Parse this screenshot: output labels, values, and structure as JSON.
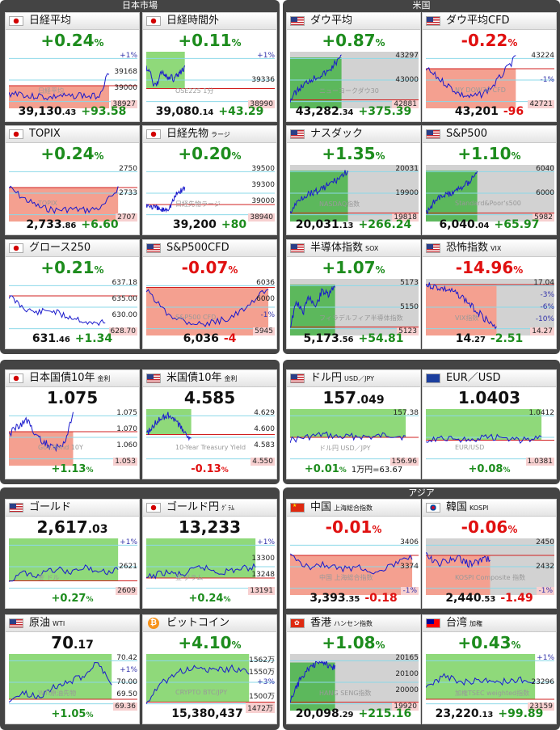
{
  "panels": [
    {
      "title": "日本市場"
    },
    {
      "title": "米国"
    },
    {
      "title": ""
    },
    {
      "title": ""
    },
    {
      "title": ""
    },
    {
      "title": "アジア"
    }
  ],
  "colors": {
    "up": "#1d8c1d",
    "down": "#e01010",
    "fill_up": "#8fd97a",
    "fill_down": "#f4a090",
    "line": "#1a1acc"
  },
  "cards": [
    {
      "id": "nikkei",
      "flag": "jp",
      "name": "日経平均",
      "sub": "",
      "main": "+0.24",
      "unit": "%",
      "dir": "up",
      "foot_int": "39,130",
      "foot_dec": ".43",
      "foot_chg": "+93.58",
      "foot_dir": "up",
      "labels": [
        "+1%",
        "39168",
        "39000",
        "38927"
      ],
      "watermark": "日経平均"
    },
    {
      "id": "nikkei-after",
      "flag": "jp",
      "name": "日経時間外",
      "sub": "",
      "main": "+0.11",
      "unit": "%",
      "dir": "up",
      "foot_int": "39,080",
      "foot_dec": ".14",
      "foot_chg": "+43.29",
      "foot_dir": "up",
      "labels": [
        "+1%",
        "39336",
        "38990"
      ],
      "watermark": "OSE225 1分"
    },
    {
      "id": "dow",
      "flag": "us",
      "name": "ダウ平均",
      "sub": "",
      "main": "+0.87",
      "unit": "%",
      "dir": "up",
      "foot_int": "43,282",
      "foot_dec": ".34",
      "foot_chg": "+375.39",
      "foot_dir": "up",
      "labels": [
        "43297",
        "43000",
        "42881"
      ],
      "watermark": "ニューヨークダウ30"
    },
    {
      "id": "dow-cfd",
      "flag": "us",
      "name": "ダウ平均CFD",
      "sub": "",
      "main": "-0.22",
      "unit": "%",
      "dir": "down",
      "foot_int": "43,201",
      "foot_dec": "",
      "foot_chg": "-96",
      "foot_dir": "down",
      "labels": [
        "43224",
        "-1%",
        "42721"
      ],
      "watermark": "NY DOW30 CFD"
    },
    {
      "id": "topix",
      "flag": "jp",
      "name": "TOPIX",
      "sub": "",
      "main": "+0.24",
      "unit": "%",
      "dir": "up",
      "foot_int": "2,733",
      "foot_dec": ".86",
      "foot_chg": "+6.60",
      "foot_dir": "up",
      "labels": [
        "2750",
        "2733",
        "2707"
      ],
      "watermark": "TOPIX"
    },
    {
      "id": "nikkei-fut",
      "flag": "jp",
      "name": "日経先物",
      "sub": "ラージ",
      "main": "+0.20",
      "unit": "%",
      "dir": "up",
      "foot_int": "39,200",
      "foot_dec": "",
      "foot_chg": "+80",
      "foot_dir": "up",
      "labels": [
        "39500",
        "39300",
        "39000",
        "38940"
      ],
      "watermark": "日経先物ラージ"
    },
    {
      "id": "nasdaq",
      "flag": "us",
      "name": "ナスダック",
      "sub": "",
      "main": "+1.35",
      "unit": "%",
      "dir": "up",
      "foot_int": "20,031",
      "foot_dec": ".13",
      "foot_chg": "+266.24",
      "foot_dir": "up",
      "labels": [
        "20031",
        "19900",
        "19818"
      ],
      "watermark": "NASDAQ指数"
    },
    {
      "id": "sp500",
      "flag": "us",
      "name": "S&P500",
      "sub": "",
      "main": "+1.10",
      "unit": "%",
      "dir": "up",
      "foot_int": "6,040",
      "foot_dec": ".04",
      "foot_chg": "+65.97",
      "foot_dir": "up",
      "labels": [
        "6040",
        "6000",
        "5982"
      ],
      "watermark": "Standard&Poor's500"
    },
    {
      "id": "growth",
      "flag": "jp",
      "name": "グロース250",
      "sub": "",
      "main": "+0.21",
      "unit": "%",
      "dir": "up",
      "foot_int": "631",
      "foot_dec": ".46",
      "foot_chg": "+1.34",
      "foot_dir": "up",
      "labels": [
        "637.18",
        "635.00",
        "630.00",
        "628.70"
      ],
      "watermark": ""
    },
    {
      "id": "sp500-cfd",
      "flag": "us",
      "name": "S&P500CFD",
      "sub": "",
      "main": "-0.07",
      "unit": "%",
      "dir": "down",
      "foot_int": "6,036",
      "foot_dec": "",
      "foot_chg": "-4",
      "foot_dir": "down",
      "labels": [
        "6036",
        "6000",
        "-1%",
        "5945"
      ],
      "watermark": "S&P500 CFD"
    },
    {
      "id": "sox",
      "flag": "us",
      "name": "半導体指数",
      "sub": "SOX",
      "main": "+1.07",
      "unit": "%",
      "dir": "up",
      "foot_int": "5,173",
      "foot_dec": ".56",
      "foot_chg": "+54.81",
      "foot_dir": "up",
      "labels": [
        "5173",
        "5150",
        "5123"
      ],
      "watermark": "フィラデルフィア半導体指数"
    },
    {
      "id": "vix",
      "flag": "us",
      "name": "恐怖指数",
      "sub": "VIX",
      "main": "-14.96",
      "unit": "%",
      "dir": "down",
      "foot_int": "14",
      "foot_dec": ".27",
      "foot_chg": "-2.51",
      "foot_dir": "up",
      "labels": [
        "17.04",
        "-3%",
        "-6%",
        "-10%",
        "14.27"
      ],
      "watermark": "VIX指数"
    },
    {
      "id": "jgb10",
      "flag": "jp",
      "name": "日本国債10年",
      "sub": "金利",
      "main": "1.075",
      "unit": "",
      "dir": "black",
      "foot_pct": "+1.13",
      "foot_pct_dir": "up",
      "extra": "",
      "labels": [
        "1.075",
        "1.070",
        "1.060",
        "1.053"
      ],
      "watermark": "Gov.Bond 10Y"
    },
    {
      "id": "ust10",
      "flag": "us",
      "name": "米国債10年",
      "sub": "金利",
      "main": "4.585",
      "unit": "",
      "dir": "black",
      "foot_pct": "-0.13",
      "foot_pct_dir": "down",
      "extra": "",
      "labels": [
        "4.629",
        "4.600",
        "4.583",
        "4.550"
      ],
      "watermark": "10-Year Treasury Yield"
    },
    {
      "id": "usdjpy",
      "flag": "us",
      "name": "ドル円",
      "sub": "USD／JPY",
      "main": "157",
      "main_dec": ".049",
      "unit": "",
      "dir": "black",
      "foot_pct": "+0.01",
      "foot_pct_dir": "up",
      "extra": "1万円=63.67",
      "labels": [
        "157.38",
        "156.96"
      ],
      "watermark": "ドル円 USD／JPY"
    },
    {
      "id": "eurusd",
      "flag": "eu",
      "name": "EUR／USD",
      "sub": "",
      "main": "1.0403",
      "unit": "",
      "dir": "black",
      "foot_pct": "+0.08",
      "foot_pct_dir": "up",
      "extra": "",
      "labels": [
        "1.0412",
        "1.0381"
      ],
      "watermark": "EUR/USD"
    },
    {
      "id": "gold",
      "flag": "us",
      "name": "ゴールド",
      "sub": "",
      "main": "2,617",
      "main_dec": ".03",
      "unit": "",
      "dir": "black",
      "foot_pct": "+0.27",
      "foot_pct_dir": "up",
      "extra": "",
      "labels": [
        "+1%",
        "2621",
        "2609"
      ],
      "watermark": "金 ドル"
    },
    {
      "id": "gold-jpy",
      "flag": "jp",
      "name": "ゴールド円",
      "sub": "ｸﾞﾗﾑ",
      "main": "13,233",
      "unit": "",
      "dir": "black",
      "foot_pct": "+0.24",
      "foot_pct_dir": "up",
      "extra": "",
      "labels": [
        "+1%",
        "13300",
        "13248",
        "13191"
      ],
      "watermark": "金 グラム"
    },
    {
      "id": "china",
      "flag": "cn",
      "name": "中国",
      "sub": "上海総合指数",
      "main": "-0.01",
      "unit": "%",
      "dir": "down",
      "foot_int": "3,393",
      "foot_dec": ".35",
      "foot_chg": "-0.18",
      "foot_dir": "down",
      "labels": [
        "3406",
        "3374",
        "-1%"
      ],
      "watermark": "中国 上海総合指数"
    },
    {
      "id": "korea",
      "flag": "kr",
      "name": "韓国",
      "sub": "KOSPI",
      "main": "-0.06",
      "unit": "%",
      "dir": "down",
      "foot_int": "2,440",
      "foot_dec": ".53",
      "foot_chg": "-1.49",
      "foot_dir": "down",
      "labels": [
        "2450",
        "2432",
        "-1%"
      ],
      "watermark": "KOSPI Composite 指数"
    },
    {
      "id": "oil",
      "flag": "us",
      "name": "原油",
      "sub": "WTI",
      "main": "70",
      "main_dec": ".17",
      "unit": "",
      "dir": "black",
      "foot_pct": "+1.05",
      "foot_pct_dir": "up",
      "extra": "",
      "labels": [
        "70.42",
        "+1%",
        "70.00",
        "69.50",
        "69.36"
      ],
      "watermark": "WTI原油先物"
    },
    {
      "id": "bitcoin",
      "flag": "btc",
      "name": "ビットコイン",
      "sub": "",
      "main": "+4.10",
      "unit": "%",
      "dir": "up",
      "foot_int": "15,380,437",
      "foot_dec": "",
      "foot_chg": "",
      "foot_dir": "up",
      "labels": [
        "1562万",
        "1550万",
        "+3%",
        "1500万",
        "1472万"
      ],
      "watermark": "CRYPTO BTC/JPY"
    },
    {
      "id": "hk",
      "flag": "hk",
      "name": "香港",
      "sub": "ハンセン指数",
      "main": "+1.08",
      "unit": "%",
      "dir": "up",
      "foot_int": "20,098",
      "foot_dec": ".29",
      "foot_chg": "+215.16",
      "foot_dir": "up",
      "labels": [
        "20165",
        "20100",
        "20000",
        "19920"
      ],
      "watermark": "HANG SENG指数"
    },
    {
      "id": "taiwan",
      "flag": "tw",
      "name": "台湾",
      "sub": "加権",
      "main": "+0.43",
      "unit": "%",
      "dir": "up",
      "foot_int": "23,220",
      "foot_dec": ".13",
      "foot_chg": "+99.89",
      "foot_dir": "up",
      "labels": [
        "+1%",
        "23296",
        "23159"
      ],
      "watermark": "加権TSEC weighted指数"
    }
  ]
}
